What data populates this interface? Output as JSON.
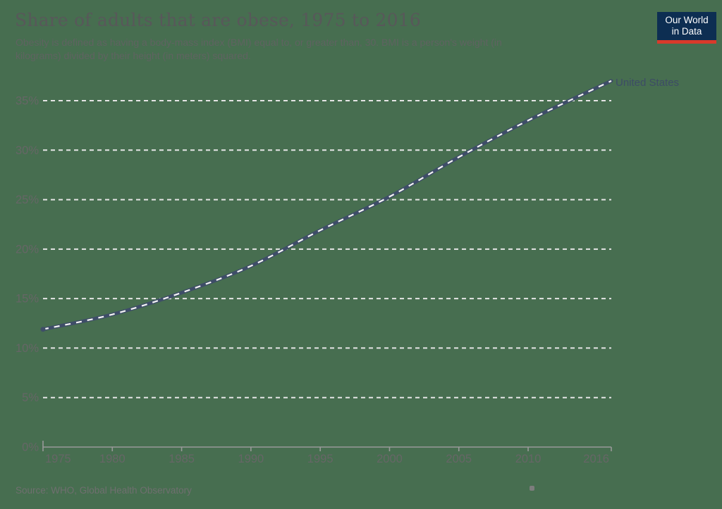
{
  "page": {
    "background_color": "#476e50"
  },
  "header": {
    "title": "Share of adults that are obese, 1975 to 2016",
    "subtitle_lines": [
      "Obesity is defined as having a body-mass index (BMI) equal to, or greater than, 30. BMI is a person's weight (in",
      "kilograms) divided by their height (in meters) squared."
    ],
    "logo": {
      "line1": "Our World",
      "line2": "in Data",
      "bg_color": "#0d2e52",
      "bar_color": "#d93a2b",
      "text_color": "#ffffff"
    }
  },
  "chart_data": {
    "type": "line",
    "title": "Share of adults that are obese, 1975 to 2016",
    "xlabel": "",
    "ylabel": "",
    "xlim": [
      1975,
      2016
    ],
    "ylim": [
      0,
      35
    ],
    "grid": "horizontal dashed",
    "legend_position": "end-of-line label",
    "x_tick_labels": [
      "1975",
      "1980",
      "1985",
      "1990",
      "1995",
      "2000",
      "2005",
      "2010",
      "2016"
    ],
    "y_tick_labels": [
      "0%",
      "5%",
      "10%",
      "15%",
      "20%",
      "25%",
      "30%",
      "35%"
    ],
    "x_tick_values": [
      1975,
      1980,
      1985,
      1990,
      1995,
      2000,
      2005,
      2010,
      2016
    ],
    "y_tick_values": [
      0,
      5,
      10,
      15,
      20,
      25,
      30,
      35
    ],
    "series": [
      {
        "name": "United States",
        "color": "#3e4d68",
        "dash_overlay_color": "#f4f4f4",
        "x": [
          1975,
          1980,
          1985,
          1990,
          1995,
          2000,
          2005,
          2010,
          2016
        ],
        "values": [
          11.9,
          13.4,
          15.6,
          18.3,
          21.9,
          25.3,
          29.3,
          33.0,
          37.0
        ]
      }
    ],
    "end_label": "United States"
  },
  "footer": {
    "source": "Source: WHO, Global Health Observatory"
  },
  "colors": {
    "title_text": "#58585a",
    "subtitle_text": "#5f6361",
    "axis_label_text": "#666666",
    "gridline": "#e5e5e5",
    "axis_line": "#999999",
    "series_line": "#3e4d68",
    "series_dash_overlay": "#f4f4f4"
  }
}
